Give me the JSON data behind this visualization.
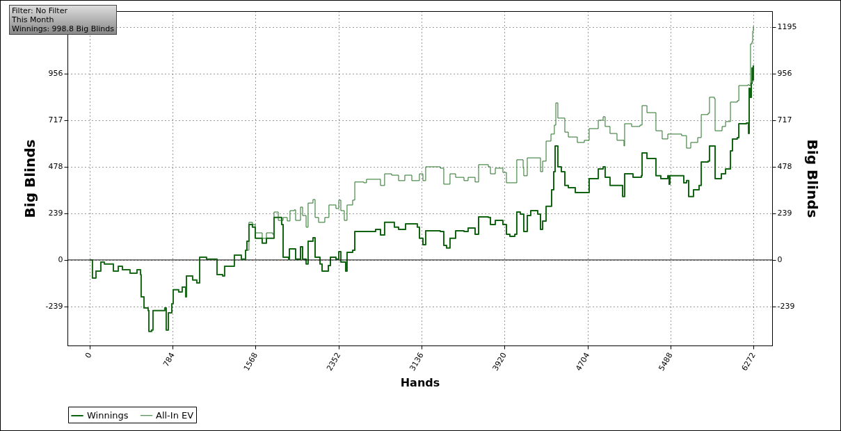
{
  "chart_data": {
    "type": "step",
    "xlabel": "Hands",
    "ylabel": "Big Blinds",
    "y2label": "Big Blinds",
    "annotations": [
      "Filter: No Filter",
      "This Month",
      "Winnings: 998.8 Big Blinds"
    ],
    "xlim": [
      -210,
      6449
    ],
    "xticks": [
      0,
      784,
      1568,
      2352,
      3136,
      3920,
      4704,
      5488,
      6272
    ],
    "ylim": [
      -439,
      1277
    ],
    "yticks": [
      -239,
      0,
      239,
      478,
      717,
      956,
      {
        "value": 1195,
        "label": null
      }
    ],
    "y2lim": [
      -439,
      1277
    ],
    "y2ticks": [
      -239,
      0,
      239,
      478,
      717,
      956,
      1195
    ],
    "grid": true,
    "legend": "bottom left",
    "line_style": "solid",
    "ref_lines": [
      {
        "axis": "y",
        "value": 0,
        "color": "#000000"
      }
    ],
    "series": [
      {
        "name": "Winnings",
        "color": "#0f620f",
        "x": [
          0,
          26,
          59,
          105,
          138,
          224,
          270,
          309,
          381,
          447,
          480,
          486,
          513,
          552,
          559,
          585,
          598,
          664,
          710,
          723,
          743,
          776,
          789,
          841,
          874,
          907,
          914,
          973,
          1012,
          1039,
          1104,
          1190,
          1203,
          1256,
          1275,
          1367,
          1433,
          1473,
          1486,
          1505,
          1538,
          1565,
          1630,
          1670,
          1729,
          1742,
          1814,
          1828,
          1880,
          1887,
          1933,
          1946,
          1992,
          2012,
          2045,
          2064,
          2110,
          2130,
          2176,
          2196,
          2255,
          2275,
          2327,
          2354,
          2373,
          2419,
          2432,
          2485,
          2505,
          2616,
          2702,
          2748,
          2787,
          2879,
          2919,
          2985,
          3096,
          3116,
          3149,
          3175,
          3313,
          3346,
          3372,
          3405,
          3458,
          3537,
          3576,
          3642,
          3675,
          3767,
          3787,
          3833,
          3905,
          3938,
          3971,
          4017,
          4036,
          4069,
          4102,
          4135,
          4168,
          4234,
          4260,
          4280,
          4313,
          4365,
          4385,
          4398,
          4424,
          4457,
          4490,
          4523,
          4589,
          4654,
          4720,
          4806,
          4852,
          4871,
          4917,
          4970,
          5036,
          5055,
          5115,
          5134,
          5213,
          5220,
          5266,
          5345,
          5351,
          5397,
          5463,
          5476,
          5483,
          5594,
          5614,
          5640,
          5660,
          5706,
          5759,
          5779,
          5844,
          5857,
          5903,
          5910,
          5969,
          6009,
          6055,
          6074,
          6120,
          6134,
          6206,
          6226,
          6232,
          6239,
          6252,
          6259,
          6265,
          6272
        ],
        "values": [
          0,
          -93,
          -57,
          -11,
          -21,
          -57,
          -32,
          -50,
          -68,
          -50,
          -75,
          -189,
          -246,
          -260,
          -367,
          -360,
          -260,
          -260,
          -246,
          -360,
          -271,
          -225,
          -153,
          -164,
          -139,
          -189,
          -82,
          -103,
          -118,
          14,
          4,
          4,
          -75,
          -82,
          -32,
          25,
          4,
          50,
          96,
          182,
          168,
          111,
          86,
          111,
          111,
          218,
          182,
          14,
          4,
          57,
          57,
          4,
          68,
          4,
          -21,
          96,
          114,
          14,
          -21,
          -57,
          -29,
          14,
          4,
          43,
          -11,
          -57,
          39,
          50,
          146,
          146,
          157,
          128,
          193,
          168,
          157,
          185,
          168,
          111,
          78,
          150,
          146,
          75,
          61,
          111,
          150,
          146,
          164,
          132,
          221,
          218,
          182,
          203,
          182,
          132,
          121,
          132,
          246,
          235,
          146,
          228,
          253,
          235,
          157,
          200,
          275,
          360,
          453,
          585,
          478,
          453,
          382,
          371,
          346,
          346,
          417,
          467,
          478,
          424,
          382,
          382,
          325,
          442,
          442,
          424,
          432,
          549,
          521,
          521,
          432,
          417,
          432,
          389,
          432,
          432,
          396,
          407,
          325,
          360,
          382,
          503,
          507,
          585,
          585,
          417,
          442,
          467,
          560,
          621,
          628,
          699,
          703,
          649,
          881,
          835,
          906,
          985,
          924,
          999
        ]
      },
      {
        "name": "All-In EV",
        "color": "#247024",
        "x": [
          0,
          26,
          59,
          105,
          138,
          224,
          270,
          309,
          381,
          447,
          480,
          486,
          513,
          552,
          559,
          585,
          598,
          664,
          710,
          723,
          743,
          776,
          789,
          841,
          874,
          907,
          914,
          973,
          1012,
          1039,
          1104,
          1190,
          1203,
          1256,
          1275,
          1367,
          1433,
          1473,
          1505,
          1538,
          1565,
          1630,
          1670,
          1729,
          1742,
          1782,
          1828,
          1867,
          1893,
          1933,
          1946,
          1992,
          2012,
          2045,
          2064,
          2110,
          2130,
          2163,
          2222,
          2261,
          2327,
          2354,
          2373,
          2406,
          2432,
          2485,
          2505,
          2590,
          2616,
          2689,
          2748,
          2787,
          2853,
          2919,
          2978,
          3044,
          3116,
          3149,
          3175,
          3313,
          3346,
          3405,
          3458,
          3537,
          3576,
          3642,
          3675,
          3767,
          3787,
          3833,
          3905,
          3938,
          4030,
          4036,
          4096,
          4102,
          4135,
          4214,
          4260,
          4280,
          4313,
          4359,
          4391,
          4405,
          4424,
          4457,
          4490,
          4523,
          4608,
          4674,
          4720,
          4806,
          4852,
          4871,
          4917,
          4983,
          5049,
          5055,
          5121,
          5200,
          5220,
          5266,
          5345,
          5351,
          5410,
          5463,
          5594,
          5640,
          5680,
          5746,
          5779,
          5844,
          5857,
          5903,
          5910,
          5976,
          6009,
          6055,
          6120,
          6134,
          6219,
          6232,
          6245,
          6259,
          6265,
          6272
        ],
        "values": [
          0,
          -93,
          -57,
          -11,
          -21,
          -57,
          -32,
          -50,
          -68,
          -50,
          -75,
          -189,
          -246,
          -260,
          -367,
          -360,
          -260,
          -260,
          -246,
          -360,
          -271,
          -225,
          -153,
          -164,
          -139,
          -189,
          -82,
          -103,
          -118,
          14,
          4,
          4,
          -75,
          -82,
          -32,
          25,
          4,
          50,
          193,
          182,
          139,
          111,
          139,
          132,
          246,
          203,
          218,
          200,
          253,
          257,
          203,
          271,
          228,
          168,
          292,
          310,
          218,
          193,
          218,
          282,
          264,
          307,
          253,
          203,
          282,
          307,
          400,
          396,
          414,
          414,
          382,
          442,
          435,
          407,
          435,
          407,
          442,
          407,
          478,
          471,
          389,
          442,
          424,
          407,
          424,
          400,
          489,
          478,
          442,
          471,
          449,
          396,
          396,
          514,
          471,
          432,
          524,
          524,
          453,
          507,
          610,
          646,
          692,
          806,
          728,
          728,
          656,
          631,
          603,
          614,
          674,
          717,
          735,
          685,
          649,
          614,
          585,
          699,
          685,
          692,
          792,
          756,
          756,
          663,
          621,
          646,
          638,
          574,
          603,
          628,
          746,
          753,
          835,
          828,
          663,
          685,
          710,
          810,
          817,
          895,
          899,
          895,
          1109,
          1120,
          1174,
          1200
        ]
      }
    ]
  }
}
